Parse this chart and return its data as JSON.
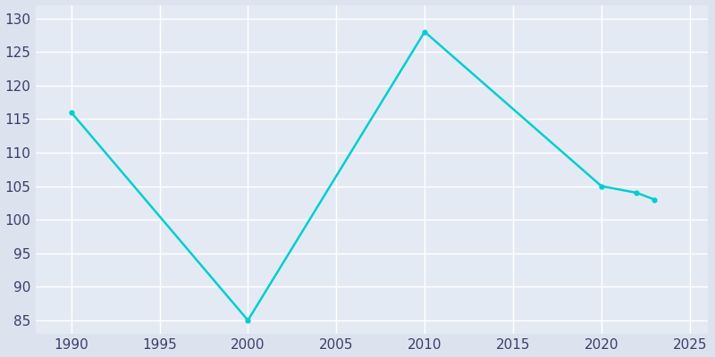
{
  "years": [
    1990,
    2000,
    2010,
    2020,
    2022,
    2023
  ],
  "population": [
    116,
    85,
    128,
    105,
    104,
    103
  ],
  "line_color": "#00CED1",
  "marker": "o",
  "marker_size": 3.5,
  "line_width": 1.8,
  "bg_color": "#dde3ee",
  "plot_bg_color": "#e4eaf4",
  "grid_color": "#ffffff",
  "xlim": [
    1988,
    2026
  ],
  "ylim": [
    83,
    132
  ],
  "xticks": [
    1990,
    1995,
    2000,
    2005,
    2010,
    2015,
    2020,
    2025
  ],
  "yticks": [
    85,
    90,
    95,
    100,
    105,
    110,
    115,
    120,
    125,
    130
  ],
  "tick_label_color": "#3a3f6b",
  "tick_fontsize": 11
}
